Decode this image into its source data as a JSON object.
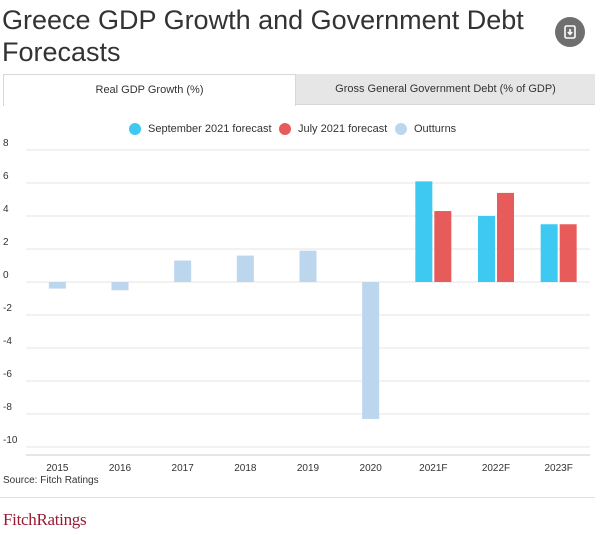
{
  "header": {
    "title": "Greece GDP Growth and Government Debt Forecasts",
    "download_icon": "download-icon"
  },
  "tabs": [
    {
      "label": "Real GDP Growth (%)",
      "active": true
    },
    {
      "label": "Gross General Government Debt (% of GDP)",
      "active": false
    }
  ],
  "legend": [
    {
      "label": "September 2021 forecast",
      "color": "#3ec9f2"
    },
    {
      "label": "July 2021 forecast",
      "color": "#e85b5b"
    },
    {
      "label": "Outturns",
      "color": "#bcd6ee"
    }
  ],
  "chart_data": {
    "type": "bar",
    "categories": [
      "2015",
      "2016",
      "2017",
      "2018",
      "2019",
      "2020",
      "2021F",
      "2022F",
      "2023F"
    ],
    "series": [
      {
        "name": "September 2021 forecast",
        "color": "#3ec9f2",
        "values": [
          null,
          null,
          null,
          null,
          null,
          null,
          6.1,
          4.0,
          3.5
        ]
      },
      {
        "name": "July 2021 forecast",
        "color": "#e85b5b",
        "values": [
          null,
          null,
          null,
          null,
          null,
          null,
          4.3,
          5.4,
          3.5
        ]
      },
      {
        "name": "Outturns",
        "color": "#bcd6ee",
        "values": [
          -0.4,
          -0.5,
          1.3,
          1.6,
          1.9,
          -8.3,
          null,
          null,
          null
        ]
      }
    ],
    "y_ticks": [
      "8",
      "6",
      "4",
      "2",
      "0",
      "-2",
      "-4",
      "-6",
      "-8",
      "-10"
    ],
    "ylim": [
      -10,
      8
    ],
    "grid": true
  },
  "footer": {
    "source": "Source: Fitch Ratings",
    "logo_text": "FitchRatings"
  }
}
